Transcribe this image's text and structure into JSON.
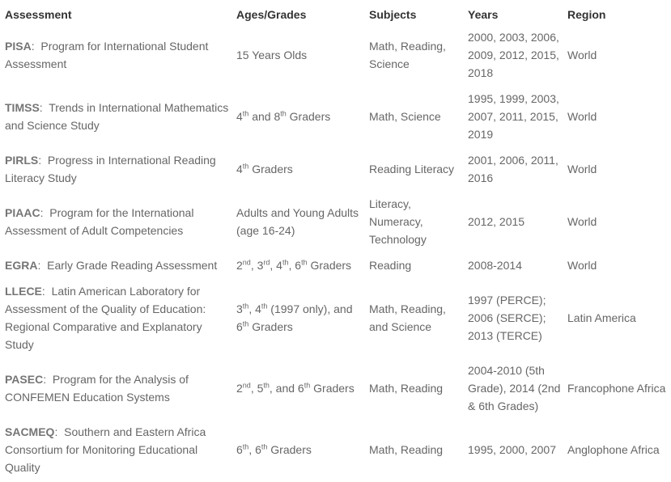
{
  "headers": {
    "assessment": "Assessment",
    "ages": "Ages/Grades",
    "subjects": "Subjects",
    "years": "Years",
    "region": "Region"
  },
  "rows": [
    {
      "abbr": "PISA",
      "name": "Program for International Student Assessment",
      "ages": [
        "15 Years Olds"
      ],
      "subjects": "Math, Reading, Science",
      "years": "2000, 2003, 2006, 2009, 2012, 2015, 2018",
      "region": "World"
    },
    {
      "abbr": "TIMSS",
      "name": "Trends in International Mathematics and Science Study",
      "ages": [
        "4",
        "th",
        " and 8",
        "th",
        " Graders"
      ],
      "subjects": "Math, Science",
      "years": "1995, 1999, 2003, 2007, 2011, 2015, 2019",
      "region": "World"
    },
    {
      "abbr": "PIRLS",
      "name": "Progress in International Reading Literacy Study",
      "ages": [
        "4",
        "th",
        " Graders"
      ],
      "subjects": "Reading Literacy",
      "years": "2001, 2006, 2011, 2016",
      "region": "World"
    },
    {
      "abbr": "PIAAC",
      "name": "Program for the International Assessment of Adult Competencies",
      "ages": [
        "Adults and Young Adults (age 16-24)"
      ],
      "subjects": "Literacy, Numeracy, Technology",
      "years": "2012, 2015",
      "region": "World"
    },
    {
      "abbr": "EGRA",
      "name": "Early Grade Reading Assessment",
      "ages": [
        "2",
        "nd",
        ", 3",
        "rd",
        ", 4",
        "th",
        ", 6",
        "th",
        " Graders"
      ],
      "subjects": "Reading",
      "years": "2008-2014",
      "region": "World"
    },
    {
      "abbr": "LLECE",
      "name": "Latin American Laboratory for Assessment of the Quality of Education: Regional Comparative and Explanatory Study",
      "ages": [
        "3",
        "th",
        ", 4",
        "th",
        " (1997 only), and 6",
        "th",
        " Graders"
      ],
      "subjects": "Math, Reading, and Science",
      "years": "1997 (PERCE); 2006 (SERCE); 2013 (TERCE)",
      "region": "Latin America"
    },
    {
      "abbr": "PASEC",
      "name": "Program for the Analysis of CONFEMEN Education Systems",
      "ages": [
        "2",
        "nd",
        ", 5",
        "th",
        ", and 6",
        "th",
        " Graders"
      ],
      "subjects": "Math, Reading",
      "years": "2004-2010 (5th Grade), 2014 (2nd & 6th Grades)",
      "region": "Francophone Africa"
    },
    {
      "abbr": "SACMEQ",
      "name": "Southern and Eastern Africa Consortium for Monitoring Educational Quality",
      "ages": [
        "6",
        "th",
        ", 6",
        "th",
        " Graders"
      ],
      "subjects": "Math, Reading",
      "years": "1995, 2000, 2007",
      "region": "Anglophone Africa"
    }
  ]
}
